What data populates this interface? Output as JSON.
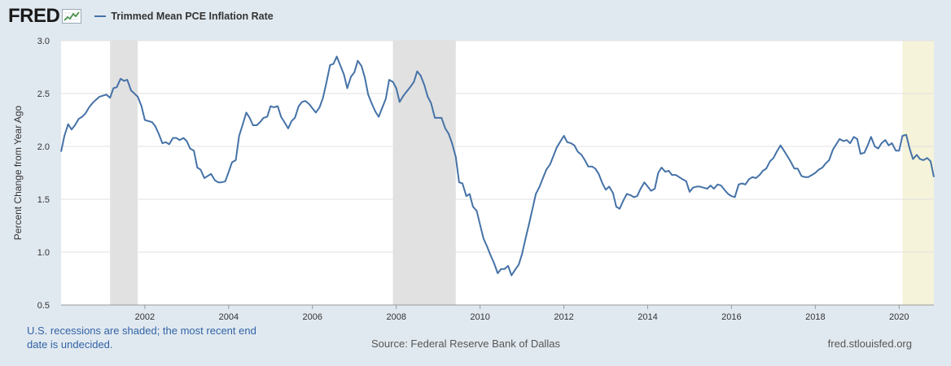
{
  "header": {
    "logo_text": "FRED",
    "logo_icon": "line-chart-icon",
    "legend_label": "Trimmed Mean PCE Inflation Rate"
  },
  "footer": {
    "recession_note": "U.S. recessions are shaded; the most recent end date is undecided.",
    "source": "Source: Federal Reserve Bank of Dallas",
    "url": "fred.stlouisfed.org"
  },
  "colors": {
    "page_bg": "#e1e9f0",
    "plot_bg": "#ffffff",
    "line": "#4572a7",
    "recession": "#e1e1e1",
    "recession_undecided": "#f5f3da",
    "grid": "#e1e1e1",
    "note_text": "#3163a5"
  },
  "chart_data": {
    "type": "line",
    "title": "",
    "xlabel": "",
    "ylabel": "Percent Change from Year Ago",
    "xlim": [
      2000.0,
      2020.83
    ],
    "ylim": [
      0.5,
      3.0
    ],
    "yticks": [
      0.5,
      1.0,
      1.5,
      2.0,
      2.5,
      3.0
    ],
    "ytick_labels": [
      "0.5",
      "1.0",
      "1.5",
      "2.0",
      "2.5",
      "3.0"
    ],
    "xticks": [
      2002,
      2004,
      2006,
      2008,
      2010,
      2012,
      2014,
      2016,
      2018,
      2020
    ],
    "xtick_labels": [
      "2002",
      "2004",
      "2006",
      "2008",
      "2010",
      "2012",
      "2014",
      "2016",
      "2018",
      "2020"
    ],
    "grid": "horizontal",
    "legend": "top-left",
    "recessions": [
      {
        "start": 2001.17,
        "end": 2001.83,
        "undecided": false
      },
      {
        "start": 2007.92,
        "end": 2009.42,
        "undecided": false
      },
      {
        "start": 2020.08,
        "end": 2020.83,
        "undecided": true
      }
    ],
    "series": [
      {
        "name": "Trimmed Mean PCE Inflation Rate",
        "x": [
          2000.0,
          2000.08,
          2000.17,
          2000.25,
          2000.33,
          2000.42,
          2000.5,
          2000.58,
          2000.67,
          2000.75,
          2000.83,
          2000.92,
          2001.0,
          2001.08,
          2001.17,
          2001.25,
          2001.33,
          2001.42,
          2001.5,
          2001.58,
          2001.67,
          2001.75,
          2001.83,
          2001.92,
          2002.0,
          2002.08,
          2002.17,
          2002.25,
          2002.33,
          2002.42,
          2002.5,
          2002.58,
          2002.67,
          2002.75,
          2002.83,
          2002.92,
          2003.0,
          2003.08,
          2003.17,
          2003.25,
          2003.33,
          2003.42,
          2003.5,
          2003.58,
          2003.67,
          2003.75,
          2003.83,
          2003.92,
          2004.0,
          2004.08,
          2004.17,
          2004.25,
          2004.33,
          2004.42,
          2004.5,
          2004.58,
          2004.67,
          2004.75,
          2004.83,
          2004.92,
          2005.0,
          2005.08,
          2005.17,
          2005.25,
          2005.33,
          2005.42,
          2005.5,
          2005.58,
          2005.67,
          2005.75,
          2005.83,
          2005.92,
          2006.0,
          2006.08,
          2006.17,
          2006.25,
          2006.33,
          2006.42,
          2006.5,
          2006.58,
          2006.67,
          2006.75,
          2006.83,
          2006.92,
          2007.0,
          2007.08,
          2007.17,
          2007.25,
          2007.33,
          2007.42,
          2007.5,
          2007.58,
          2007.67,
          2007.75,
          2007.83,
          2007.92,
          2008.0,
          2008.08,
          2008.17,
          2008.25,
          2008.33,
          2008.42,
          2008.5,
          2008.58,
          2008.67,
          2008.75,
          2008.83,
          2008.92,
          2009.0,
          2009.08,
          2009.17,
          2009.25,
          2009.33,
          2009.42,
          2009.5,
          2009.58,
          2009.67,
          2009.75,
          2009.83,
          2009.92,
          2010.0,
          2010.08,
          2010.17,
          2010.25,
          2010.33,
          2010.42,
          2010.5,
          2010.58,
          2010.67,
          2010.75,
          2010.83,
          2010.92,
          2011.0,
          2011.08,
          2011.17,
          2011.25,
          2011.33,
          2011.42,
          2011.5,
          2011.58,
          2011.67,
          2011.75,
          2011.83,
          2011.92,
          2012.0,
          2012.08,
          2012.17,
          2012.25,
          2012.33,
          2012.42,
          2012.5,
          2012.58,
          2012.67,
          2012.75,
          2012.83,
          2012.92,
          2013.0,
          2013.08,
          2013.17,
          2013.25,
          2013.33,
          2013.42,
          2013.5,
          2013.58,
          2013.67,
          2013.75,
          2013.83,
          2013.92,
          2014.0,
          2014.08,
          2014.17,
          2014.25,
          2014.33,
          2014.42,
          2014.5,
          2014.58,
          2014.67,
          2014.75,
          2014.83,
          2014.92,
          2015.0,
          2015.08,
          2015.17,
          2015.25,
          2015.33,
          2015.42,
          2015.5,
          2015.58,
          2015.67,
          2015.75,
          2015.83,
          2015.92,
          2016.0,
          2016.08,
          2016.17,
          2016.25,
          2016.33,
          2016.42,
          2016.5,
          2016.58,
          2016.67,
          2016.75,
          2016.83,
          2016.92,
          2017.0,
          2017.08,
          2017.17,
          2017.25,
          2017.33,
          2017.42,
          2017.5,
          2017.58,
          2017.67,
          2017.75,
          2017.83,
          2017.92,
          2018.0,
          2018.08,
          2018.17,
          2018.25,
          2018.33,
          2018.42,
          2018.5,
          2018.58,
          2018.67,
          2018.75,
          2018.83,
          2018.92,
          2019.0,
          2019.08,
          2019.17,
          2019.25,
          2019.33,
          2019.42,
          2019.5,
          2019.58,
          2019.67,
          2019.75,
          2019.83,
          2019.92,
          2020.0,
          2020.08,
          2020.17,
          2020.25,
          2020.33,
          2020.42,
          2020.5,
          2020.58,
          2020.67,
          2020.75,
          2020.83
        ],
        "values": [
          1.95,
          2.1,
          2.21,
          2.16,
          2.2,
          2.26,
          2.28,
          2.31,
          2.37,
          2.41,
          2.44,
          2.47,
          2.48,
          2.49,
          2.46,
          2.55,
          2.56,
          2.64,
          2.62,
          2.63,
          2.53,
          2.5,
          2.47,
          2.38,
          2.25,
          2.24,
          2.23,
          2.19,
          2.12,
          2.03,
          2.04,
          2.02,
          2.08,
          2.08,
          2.06,
          2.08,
          2.05,
          1.98,
          1.96,
          1.8,
          1.78,
          1.7,
          1.72,
          1.74,
          1.68,
          1.66,
          1.66,
          1.67,
          1.76,
          1.85,
          1.87,
          2.1,
          2.2,
          2.32,
          2.27,
          2.2,
          2.2,
          2.23,
          2.27,
          2.28,
          2.38,
          2.37,
          2.38,
          2.28,
          2.23,
          2.17,
          2.24,
          2.27,
          2.38,
          2.42,
          2.43,
          2.4,
          2.36,
          2.32,
          2.37,
          2.46,
          2.6,
          2.77,
          2.78,
          2.85,
          2.76,
          2.68,
          2.55,
          2.66,
          2.7,
          2.81,
          2.76,
          2.65,
          2.49,
          2.4,
          2.33,
          2.28,
          2.37,
          2.45,
          2.63,
          2.61,
          2.55,
          2.42,
          2.48,
          2.52,
          2.56,
          2.61,
          2.71,
          2.67,
          2.58,
          2.47,
          2.41,
          2.27,
          2.27,
          2.27,
          2.17,
          2.12,
          2.03,
          1.9,
          1.66,
          1.65,
          1.53,
          1.55,
          1.43,
          1.39,
          1.26,
          1.13,
          1.05,
          0.97,
          0.9,
          0.8,
          0.84,
          0.84,
          0.87,
          0.78,
          0.83,
          0.88,
          0.98,
          1.12,
          1.27,
          1.41,
          1.55,
          1.62,
          1.7,
          1.78,
          1.83,
          1.91,
          1.99,
          2.05,
          2.1,
          2.04,
          2.03,
          2.01,
          1.95,
          1.92,
          1.87,
          1.81,
          1.81,
          1.79,
          1.74,
          1.65,
          1.59,
          1.62,
          1.56,
          1.43,
          1.41,
          1.49,
          1.55,
          1.54,
          1.52,
          1.53,
          1.6,
          1.66,
          1.62,
          1.58,
          1.6,
          1.75,
          1.8,
          1.76,
          1.77,
          1.73,
          1.73,
          1.71,
          1.69,
          1.67,
          1.57,
          1.61,
          1.62,
          1.62,
          1.61,
          1.6,
          1.63,
          1.6,
          1.64,
          1.63,
          1.59,
          1.55,
          1.53,
          1.52,
          1.64,
          1.65,
          1.64,
          1.69,
          1.71,
          1.7,
          1.73,
          1.77,
          1.79,
          1.86,
          1.89,
          1.95,
          2.01,
          1.96,
          1.91,
          1.85,
          1.79,
          1.79,
          1.72,
          1.71,
          1.71,
          1.73,
          1.75,
          1.78,
          1.8,
          1.84,
          1.87,
          1.97,
          2.02,
          2.07,
          2.05,
          2.06,
          2.03,
          2.09,
          2.07,
          1.93,
          1.94,
          2.01,
          2.09,
          2.0,
          1.98,
          2.03,
          2.06,
          2.01,
          2.03,
          1.96,
          1.96,
          2.1,
          2.11,
          1.98,
          1.88,
          1.92,
          1.88,
          1.87,
          1.89,
          1.86,
          1.71
        ]
      }
    ]
  }
}
